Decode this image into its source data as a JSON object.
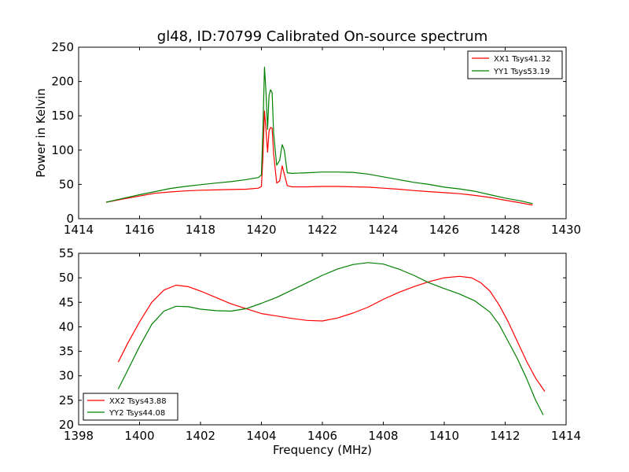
{
  "chart_data": [
    {
      "type": "line",
      "title": "gl48, ID:70799 Calibrated On-source spectrum",
      "xlabel": "",
      "ylabel": "Power in Kelvin",
      "xlim": [
        1414,
        1430
      ],
      "ylim": [
        0,
        250
      ],
      "xticks": [
        1414,
        1416,
        1418,
        1420,
        1422,
        1424,
        1426,
        1428,
        1430
      ],
      "yticks": [
        0,
        50,
        100,
        150,
        200,
        250
      ],
      "legend_position": "upper-right",
      "series": [
        {
          "name": "XX1 Tsys41.32",
          "color": "#ff0000",
          "points": [
            [
              1414.9,
              24
            ],
            [
              1415.5,
              29
            ],
            [
              1416.0,
              33
            ],
            [
              1416.5,
              37
            ],
            [
              1417.0,
              39
            ],
            [
              1417.5,
              40.5
            ],
            [
              1418.0,
              41.5
            ],
            [
              1418.5,
              42
            ],
            [
              1419.0,
              42.5
            ],
            [
              1419.5,
              43
            ],
            [
              1419.9,
              44.5
            ],
            [
              1420.0,
              47
            ],
            [
              1420.05,
              90
            ],
            [
              1420.1,
              157
            ],
            [
              1420.15,
              130
            ],
            [
              1420.2,
              97
            ],
            [
              1420.25,
              128
            ],
            [
              1420.3,
              133
            ],
            [
              1420.35,
              132
            ],
            [
              1420.4,
              95
            ],
            [
              1420.5,
              52
            ],
            [
              1420.6,
              55
            ],
            [
              1420.68,
              77
            ],
            [
              1420.75,
              65
            ],
            [
              1420.85,
              48
            ],
            [
              1421.0,
              46.5
            ],
            [
              1421.5,
              46.5
            ],
            [
              1422.0,
              47
            ],
            [
              1422.5,
              47
            ],
            [
              1423.0,
              46.5
            ],
            [
              1423.5,
              46
            ],
            [
              1424.0,
              44.5
            ],
            [
              1424.5,
              43
            ],
            [
              1425.0,
              41
            ],
            [
              1425.5,
              39.5
            ],
            [
              1426.0,
              38
            ],
            [
              1426.5,
              36.5
            ],
            [
              1427.0,
              34
            ],
            [
              1427.5,
              31
            ],
            [
              1428.0,
              27
            ],
            [
              1428.5,
              23
            ],
            [
              1428.9,
              20
            ]
          ]
        },
        {
          "name": "YY1 Tsys53.19",
          "color": "#008000",
          "points": [
            [
              1414.9,
              24
            ],
            [
              1415.5,
              30
            ],
            [
              1416.0,
              35
            ],
            [
              1416.5,
              39.5
            ],
            [
              1417.0,
              44
            ],
            [
              1417.5,
              47
            ],
            [
              1418.0,
              49.5
            ],
            [
              1418.5,
              52
            ],
            [
              1419.0,
              54
            ],
            [
              1419.5,
              57
            ],
            [
              1419.9,
              60
            ],
            [
              1420.0,
              64
            ],
            [
              1420.05,
              130
            ],
            [
              1420.1,
              221
            ],
            [
              1420.15,
              185
            ],
            [
              1420.2,
              130
            ],
            [
              1420.25,
              180
            ],
            [
              1420.3,
              188
            ],
            [
              1420.35,
              184
            ],
            [
              1420.4,
              125
            ],
            [
              1420.5,
              78
            ],
            [
              1420.6,
              85
            ],
            [
              1420.68,
              108
            ],
            [
              1420.75,
              100
            ],
            [
              1420.85,
              67
            ],
            [
              1421.0,
              66
            ],
            [
              1421.5,
              67
            ],
            [
              1422.0,
              68
            ],
            [
              1422.5,
              68
            ],
            [
              1423.0,
              67.5
            ],
            [
              1423.5,
              65
            ],
            [
              1424.0,
              61
            ],
            [
              1424.5,
              57
            ],
            [
              1425.0,
              53
            ],
            [
              1425.5,
              50
            ],
            [
              1426.0,
              46
            ],
            [
              1426.5,
              43.5
            ],
            [
              1427.0,
              40
            ],
            [
              1427.5,
              35
            ],
            [
              1428.0,
              30
            ],
            [
              1428.5,
              26
            ],
            [
              1428.9,
              22
            ]
          ]
        }
      ]
    },
    {
      "type": "line",
      "title": "",
      "xlabel": "Frequency (MHz)",
      "ylabel": "",
      "xlim": [
        1398,
        1414
      ],
      "ylim": [
        20,
        55
      ],
      "xticks": [
        1398,
        1400,
        1402,
        1404,
        1406,
        1408,
        1410,
        1412,
        1414
      ],
      "yticks": [
        20,
        25,
        30,
        35,
        40,
        45,
        50,
        55
      ],
      "legend_position": "lower-left",
      "series": [
        {
          "name": "XX2 Tsys43.88",
          "color": "#ff0000",
          "points": [
            [
              1399.3,
              32.8
            ],
            [
              1399.6,
              36.5
            ],
            [
              1400.0,
              41
            ],
            [
              1400.4,
              45
            ],
            [
              1400.8,
              47.5
            ],
            [
              1401.2,
              48.5
            ],
            [
              1401.6,
              48.2
            ],
            [
              1402.0,
              47.3
            ],
            [
              1402.5,
              46
            ],
            [
              1403.0,
              44.7
            ],
            [
              1403.5,
              43.7
            ],
            [
              1404.0,
              42.7
            ],
            [
              1404.5,
              42.2
            ],
            [
              1405.0,
              41.7
            ],
            [
              1405.5,
              41.3
            ],
            [
              1406.0,
              41.2
            ],
            [
              1406.5,
              41.8
            ],
            [
              1407.0,
              42.8
            ],
            [
              1407.5,
              44
            ],
            [
              1408.0,
              45.6
            ],
            [
              1408.5,
              47
            ],
            [
              1409.0,
              48.2
            ],
            [
              1409.5,
              49.2
            ],
            [
              1410.0,
              50
            ],
            [
              1410.5,
              50.3
            ],
            [
              1410.9,
              50
            ],
            [
              1411.2,
              49
            ],
            [
              1411.5,
              47.3
            ],
            [
              1411.8,
              44.5
            ],
            [
              1412.1,
              41
            ],
            [
              1412.4,
              37
            ],
            [
              1412.7,
              33
            ],
            [
              1413.0,
              29.5
            ],
            [
              1413.3,
              26.8
            ]
          ]
        },
        {
          "name": "YY2 Tsys44.08",
          "color": "#008000",
          "points": [
            [
              1399.3,
              27.3
            ],
            [
              1399.6,
              31
            ],
            [
              1400.0,
              36
            ],
            [
              1400.4,
              40.5
            ],
            [
              1400.8,
              43.2
            ],
            [
              1401.2,
              44.2
            ],
            [
              1401.6,
              44.1
            ],
            [
              1402.0,
              43.6
            ],
            [
              1402.5,
              43.3
            ],
            [
              1403.0,
              43.2
            ],
            [
              1403.5,
              43.7
            ],
            [
              1404.0,
              44.8
            ],
            [
              1404.5,
              46
            ],
            [
              1405.0,
              47.5
            ],
            [
              1405.5,
              49
            ],
            [
              1406.0,
              50.5
            ],
            [
              1406.5,
              51.8
            ],
            [
              1407.0,
              52.7
            ],
            [
              1407.5,
              53.1
            ],
            [
              1408.0,
              52.8
            ],
            [
              1408.5,
              51.8
            ],
            [
              1409.0,
              50.5
            ],
            [
              1409.5,
              49
            ],
            [
              1410.0,
              47.8
            ],
            [
              1410.5,
              46.7
            ],
            [
              1411.0,
              45.3
            ],
            [
              1411.5,
              43
            ],
            [
              1411.8,
              40.5
            ],
            [
              1412.1,
              37
            ],
            [
              1412.4,
              33.5
            ],
            [
              1412.7,
              29.5
            ],
            [
              1413.0,
              25
            ],
            [
              1413.25,
              22
            ]
          ]
        }
      ]
    }
  ]
}
